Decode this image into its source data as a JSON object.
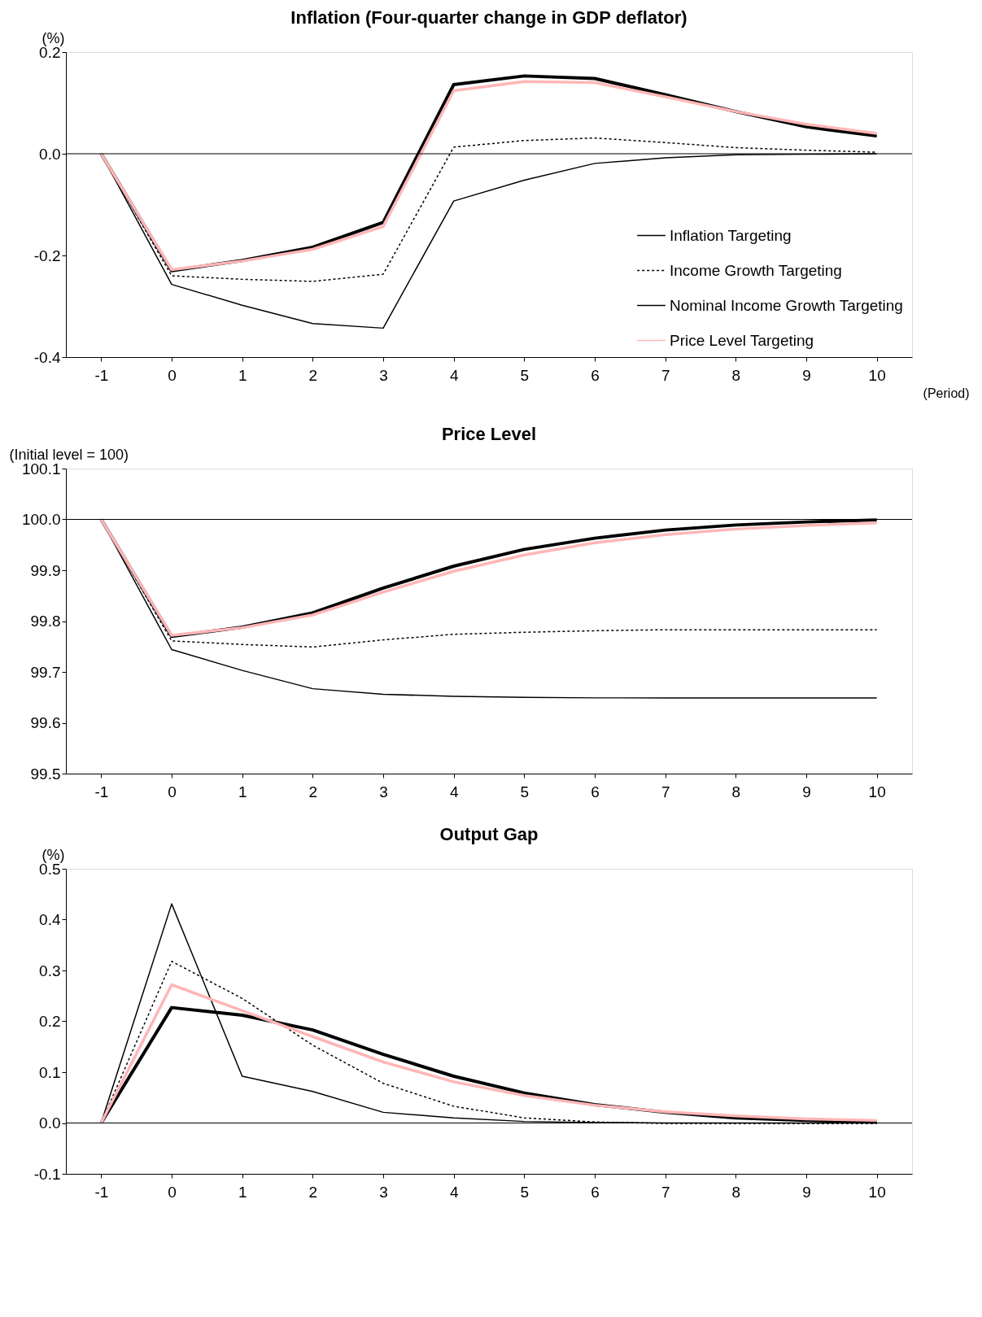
{
  "chart_data": [
    {
      "type": "line",
      "title": "Inflation (Four-quarter change in GDP deflator)",
      "ylabel": "(%)",
      "xlabel": "(Period)",
      "categories": [
        "-1",
        "0",
        "1",
        "2",
        "3",
        "4",
        "5",
        "6",
        "7",
        "8",
        "9",
        "10"
      ],
      "ylim": [
        -0.4,
        0.2
      ],
      "yticks": [
        {
          "value": -0.4,
          "label": "-0.4"
        },
        {
          "value": -0.2,
          "label": "-0.2"
        },
        {
          "value": 0,
          "label": "0.0"
        },
        {
          "value": 0.2,
          "label": "0.2"
        }
      ],
      "legend": "bottom right",
      "grid": false,
      "ref_lines": [
        {
          "axis": "y",
          "value": 0,
          "color": "#000000"
        }
      ],
      "series": [
        {
          "name": "Inflation Targeting",
          "color": "#000000",
          "line_style": "solid",
          "values": [
            0,
            -0.257,
            -0.298,
            -0.334,
            -0.343,
            -0.093,
            -0.052,
            -0.019,
            -0.008,
            -0.002,
            -0.001,
            0
          ]
        },
        {
          "name": "Income Growth Targeting",
          "color": "#000000",
          "line_style": "dotted",
          "values": [
            0,
            -0.24,
            -0.247,
            -0.251,
            -0.237,
            0.013,
            0.026,
            0.031,
            0.022,
            0.012,
            0.007,
            0.003
          ]
        },
        {
          "name": "Nominal Income Growth Targeting",
          "color": "#000000",
          "line_style": "solid",
          "values": [
            0,
            -0.23,
            -0.21,
            -0.184,
            -0.135,
            0.136,
            0.153,
            0.148,
            0.116,
            0.083,
            0.053,
            0.035
          ]
        },
        {
          "name": "Price Level Targeting",
          "color": "#ffb6b6",
          "line_style": "solid",
          "values": [
            0,
            -0.228,
            -0.211,
            -0.188,
            -0.143,
            0.124,
            0.142,
            0.14,
            0.112,
            0.083,
            0.058,
            0.04
          ]
        }
      ]
    },
    {
      "type": "line",
      "title": "Price Level",
      "ylabel": "(Initial level = 100)",
      "categories": [
        "-1",
        "0",
        "1",
        "2",
        "3",
        "4",
        "5",
        "6",
        "7",
        "8",
        "9",
        "10"
      ],
      "ylim": [
        99.5,
        100.1
      ],
      "yticks": [
        99.5,
        99.6,
        99.7,
        99.8,
        99.9,
        {
          "value": 100,
          "label": "100.0"
        },
        100.1
      ],
      "legend": false,
      "grid": false,
      "ref_lines": [
        {
          "axis": "y",
          "value": 100,
          "color": "#000000"
        }
      ],
      "series": [
        {
          "color": "#000000",
          "line_style": "solid",
          "values": [
            100,
            99.744,
            99.703,
            99.667,
            99.656,
            99.652,
            99.65,
            99.649,
            99.649,
            99.649,
            99.649,
            99.649
          ]
        },
        {
          "color": "#000000",
          "line_style": "dotted",
          "values": [
            100,
            99.761,
            99.754,
            99.749,
            99.763,
            99.774,
            99.778,
            99.781,
            99.783,
            99.783,
            99.783,
            99.783
          ]
        },
        {
          "color": "#000000",
          "line_style": "solid",
          "values": [
            100,
            99.77,
            99.788,
            99.816,
            99.865,
            99.908,
            99.941,
            99.963,
            99.979,
            99.989,
            99.995,
            99.999
          ]
        },
        {
          "color": "#ffb6b6",
          "line_style": "solid",
          "values": [
            100,
            99.772,
            99.787,
            99.812,
            99.857,
            99.898,
            99.93,
            99.954,
            99.97,
            99.981,
            99.988,
            99.993
          ]
        }
      ]
    },
    {
      "type": "line",
      "title": "Output Gap",
      "ylabel": "(%)",
      "categories": [
        "-1",
        "0",
        "1",
        "2",
        "3",
        "4",
        "5",
        "6",
        "7",
        "8",
        "9",
        "10"
      ],
      "ylim": [
        -0.1,
        0.5
      ],
      "yticks": [
        -0.1,
        {
          "value": 0,
          "label": "0.0"
        },
        0.1,
        0.2,
        0.3,
        0.4,
        0.5
      ],
      "legend": false,
      "grid": false,
      "ref_lines": [
        {
          "axis": "y",
          "value": 0,
          "color": "#000000"
        }
      ],
      "series": [
        {
          "color": "#000000",
          "line_style": "solid",
          "values": [
            0,
            0.431,
            0.092,
            0.062,
            0.021,
            0.01,
            0.003,
            0.001,
            0,
            0,
            0,
            0
          ]
        },
        {
          "color": "#000000",
          "line_style": "dotted",
          "values": [
            0,
            0.318,
            0.245,
            0.153,
            0.078,
            0.033,
            0.01,
            0.002,
            -0.001,
            -0.001,
            -0.001,
            -0.001
          ]
        },
        {
          "color": "#000000",
          "line_style": "solid",
          "values": [
            0,
            0.227,
            0.212,
            0.183,
            0.135,
            0.092,
            0.059,
            0.036,
            0.021,
            0.01,
            0.005,
            0.002
          ]
        },
        {
          "color": "#ffb6b6",
          "line_style": "solid",
          "values": [
            0,
            0.272,
            0.221,
            0.17,
            0.12,
            0.081,
            0.054,
            0.035,
            0.022,
            0.014,
            0.008,
            0.005
          ]
        }
      ]
    }
  ]
}
